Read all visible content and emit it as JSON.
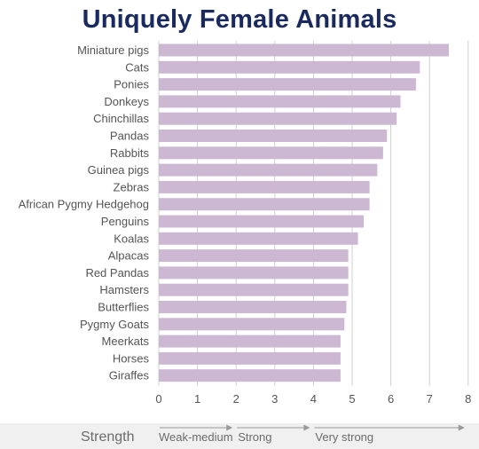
{
  "colors": {
    "title": "#1a2a5e",
    "bar": "#cdb8d4",
    "grid": "#d0d0d0",
    "legend_band": "#f0f0f0",
    "arrow": "#999999"
  },
  "chart_data": {
    "type": "bar",
    "orientation": "horizontal",
    "title": "Uniquely Female Animals",
    "xlabel": "",
    "ylabel": "",
    "categories": [
      "Miniature pigs",
      "Cats",
      "Ponies",
      "Donkeys",
      "Chinchillas",
      "Pandas",
      "Rabbits",
      "Guinea pigs",
      "Zebras",
      "African Pygmy Hedgehog",
      "Penguins",
      "Koalas",
      "Alpacas",
      "Red Pandas",
      "Hamsters",
      "Butterflies",
      "Pygmy Goats",
      "Meerkats",
      "Horses",
      "Giraffes"
    ],
    "values": [
      7.5,
      6.75,
      6.65,
      6.25,
      6.15,
      5.9,
      5.8,
      5.65,
      5.45,
      5.45,
      5.3,
      5.15,
      4.9,
      4.9,
      4.9,
      4.85,
      4.8,
      4.7,
      4.7,
      4.7
    ],
    "xlim": [
      0,
      8
    ],
    "xticks": [
      "0",
      "1",
      "2",
      "3",
      "4",
      "5",
      "6",
      "7",
      "8"
    ],
    "grid": "vertical",
    "strength_scale": {
      "label": "Strength",
      "bands": [
        {
          "label": "Weak-medium",
          "from": 0,
          "to": 2
        },
        {
          "label": "Strong",
          "from": 2,
          "to": 4
        },
        {
          "label": "Very strong",
          "from": 4,
          "to": 8
        }
      ]
    }
  }
}
